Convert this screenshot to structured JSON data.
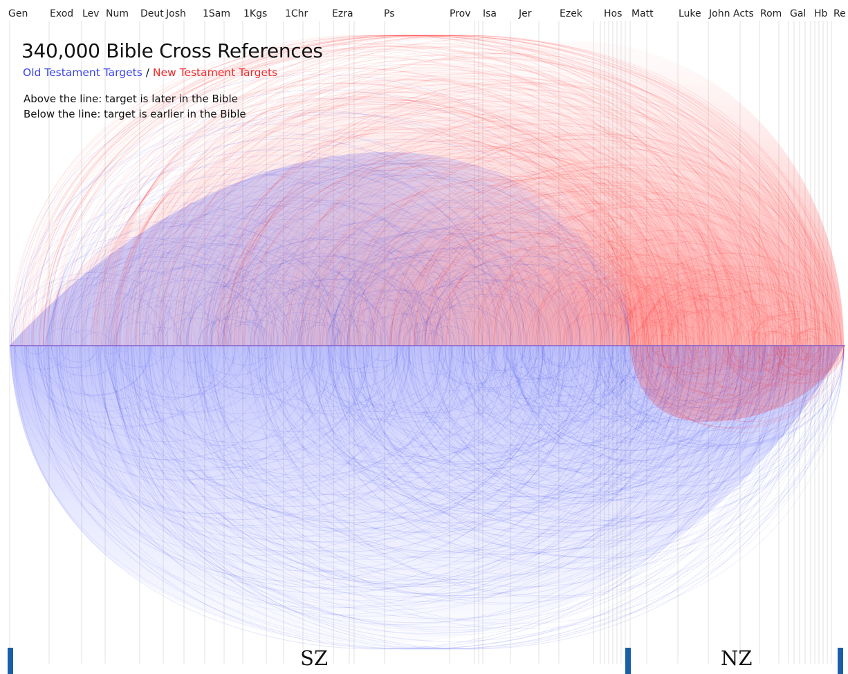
{
  "title": "340,000 Bible Cross References",
  "legend": {
    "ot_targets": "Old Testament Targets",
    "separator": " / ",
    "nt_targets": "New Testament Targets"
  },
  "notes": [
    "Above the line: target is later in the Bible",
    "Below the line: target is earlier in the Bible"
  ],
  "zones": {
    "left": "SZ",
    "right": "NZ"
  },
  "books": [
    "Gen",
    "Exod",
    "Lev",
    "Num",
    "Deut",
    "Josh",
    "1Sam",
    "1Kgs",
    "1Chr",
    "Ezra",
    "Ps",
    "Prov",
    "Isa",
    "Jer",
    "Ezek",
    "Hos",
    "Matt",
    "Luke",
    "John",
    "Acts",
    "Rom",
    "Gal",
    "Hb",
    "Re"
  ],
  "colors": {
    "old_testament": "#3a45e8",
    "new_testament": "#f02828",
    "zone_bar": "#1a5ea8"
  }
}
